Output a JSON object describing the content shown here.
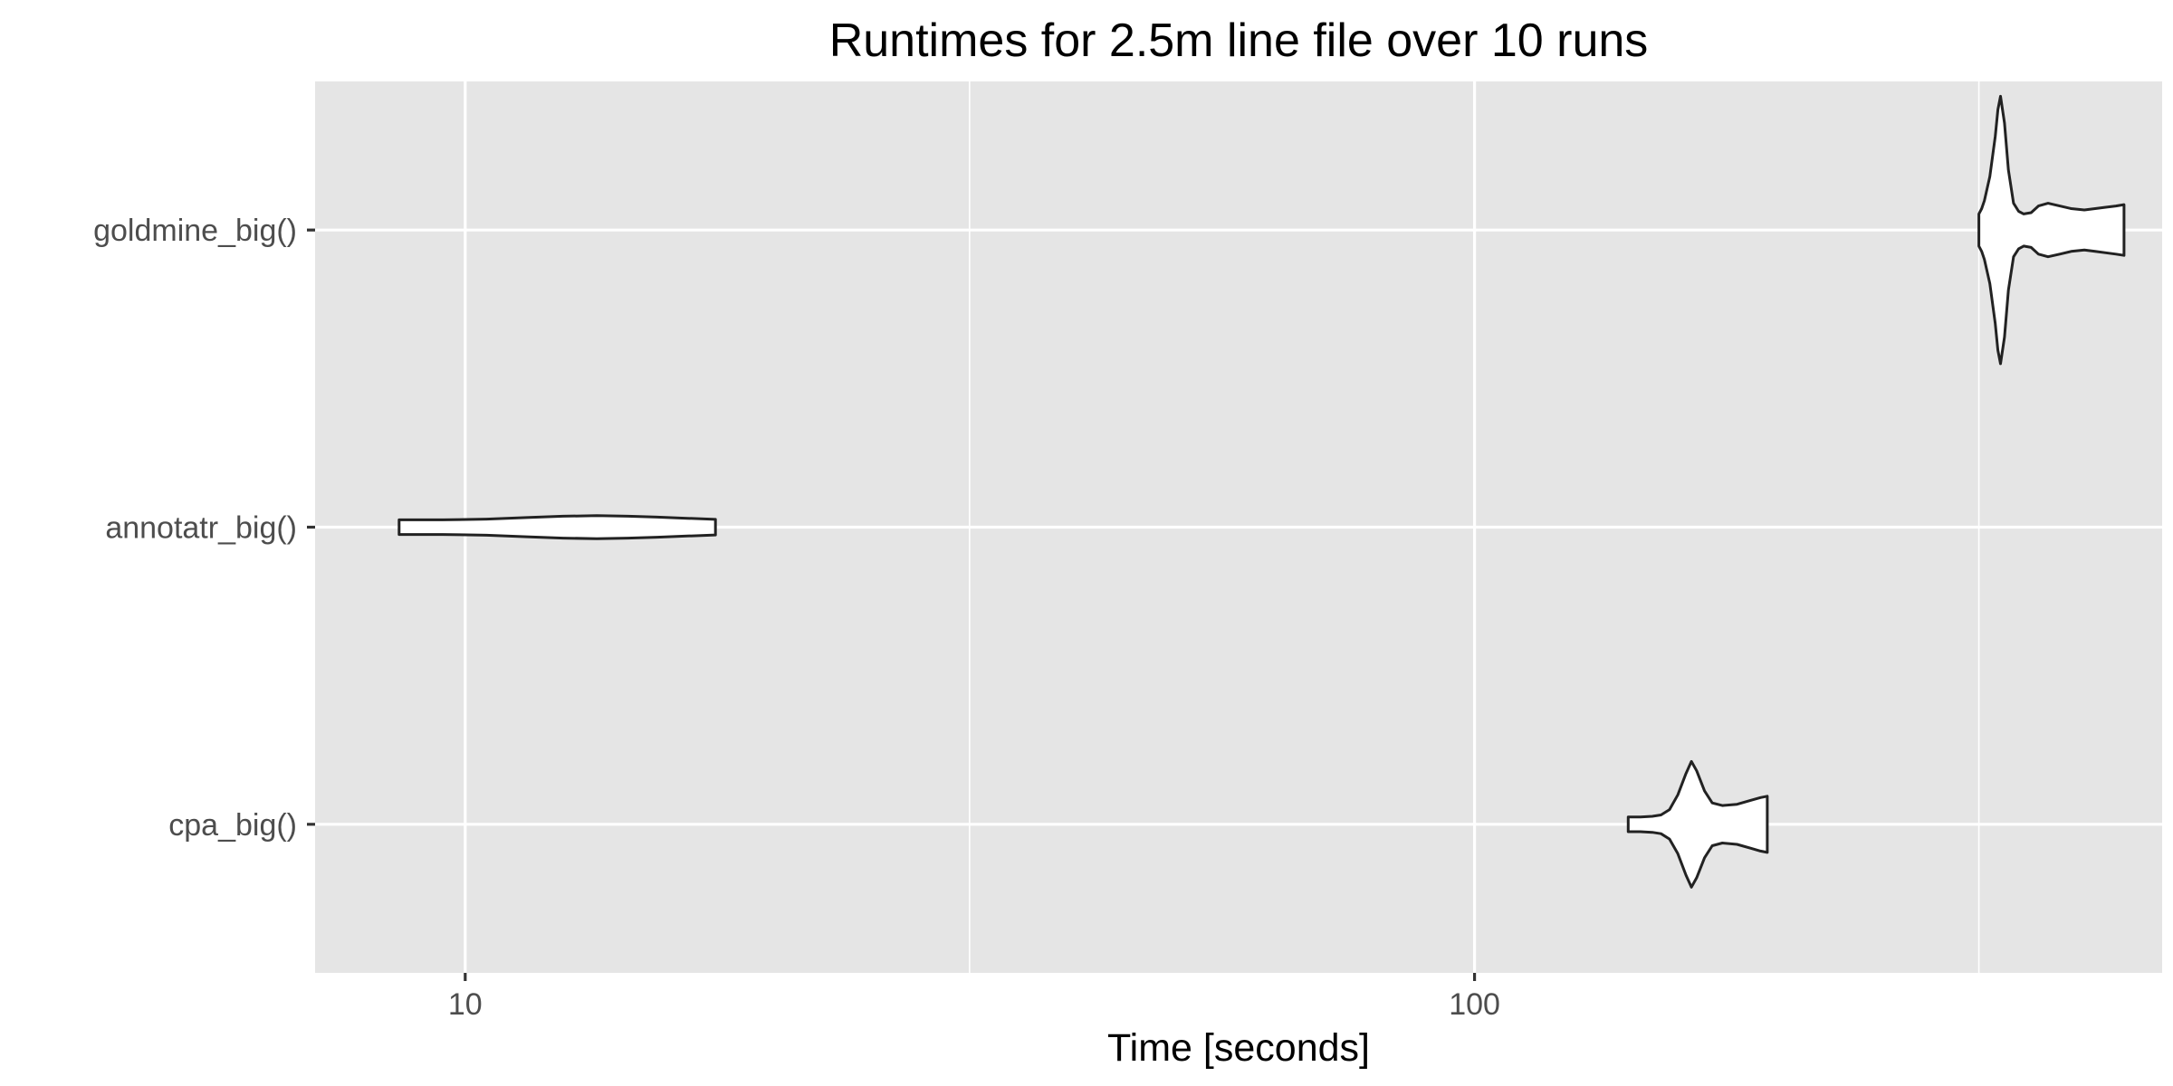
{
  "chart_data": {
    "type": "violin",
    "title": "Runtimes for 2.5m line file over 10 runs",
    "xlabel": "Time [seconds]",
    "ylabel": "",
    "x_scale": "log10",
    "xlim": [
      7.1,
      480
    ],
    "x_ticks": [
      10,
      100
    ],
    "x_tick_labels": [
      "10",
      "100"
    ],
    "x_minor_gridlines": [
      31.6,
      316
    ],
    "categories": [
      "goldmine_big()",
      "annotatr_big()",
      "cpa_big()"
    ],
    "grid": true,
    "legend": "none",
    "series": [
      {
        "category": "goldmine_big()",
        "min": 316,
        "max": 440,
        "density": [
          [
            316,
            0.12
          ],
          [
            318,
            0.16
          ],
          [
            320,
            0.22
          ],
          [
            324,
            0.4
          ],
          [
            328,
            0.7
          ],
          [
            330,
            0.9
          ],
          [
            332,
            1.0
          ],
          [
            335,
            0.8
          ],
          [
            338,
            0.45
          ],
          [
            342,
            0.2
          ],
          [
            346,
            0.14
          ],
          [
            350,
            0.12
          ],
          [
            356,
            0.13
          ],
          [
            362,
            0.18
          ],
          [
            370,
            0.2
          ],
          [
            380,
            0.18
          ],
          [
            390,
            0.16
          ],
          [
            402,
            0.15
          ],
          [
            412,
            0.16
          ],
          [
            422,
            0.17
          ],
          [
            432,
            0.18
          ],
          [
            440,
            0.19
          ]
        ]
      },
      {
        "category": "annotatr_big()",
        "min": 8.6,
        "max": 17.7,
        "density": [
          [
            8.6,
            0.055
          ],
          [
            9.5,
            0.055
          ],
          [
            10.5,
            0.06
          ],
          [
            11.5,
            0.072
          ],
          [
            12.5,
            0.082
          ],
          [
            13.5,
            0.086
          ],
          [
            14.5,
            0.082
          ],
          [
            15.5,
            0.075
          ],
          [
            16.6,
            0.066
          ],
          [
            17.7,
            0.058
          ]
        ]
      },
      {
        "category": "cpa_big()",
        "min": 142,
        "max": 195,
        "density": [
          [
            142,
            0.055
          ],
          [
            146,
            0.055
          ],
          [
            150,
            0.06
          ],
          [
            153,
            0.07
          ],
          [
            156,
            0.11
          ],
          [
            159,
            0.22
          ],
          [
            162,
            0.38
          ],
          [
            164,
            0.47
          ],
          [
            166,
            0.4
          ],
          [
            169,
            0.25
          ],
          [
            172,
            0.16
          ],
          [
            176,
            0.14
          ],
          [
            182,
            0.15
          ],
          [
            188,
            0.18
          ],
          [
            192,
            0.2
          ],
          [
            195,
            0.21
          ]
        ]
      }
    ],
    "colors": {
      "panel_background": "#e5e5e5",
      "gridline": "#ffffff",
      "violin_fill": "#ffffff",
      "violin_stroke": "#222222",
      "tick_label": "#4d4d4d",
      "tick_mark": "#333333"
    }
  }
}
